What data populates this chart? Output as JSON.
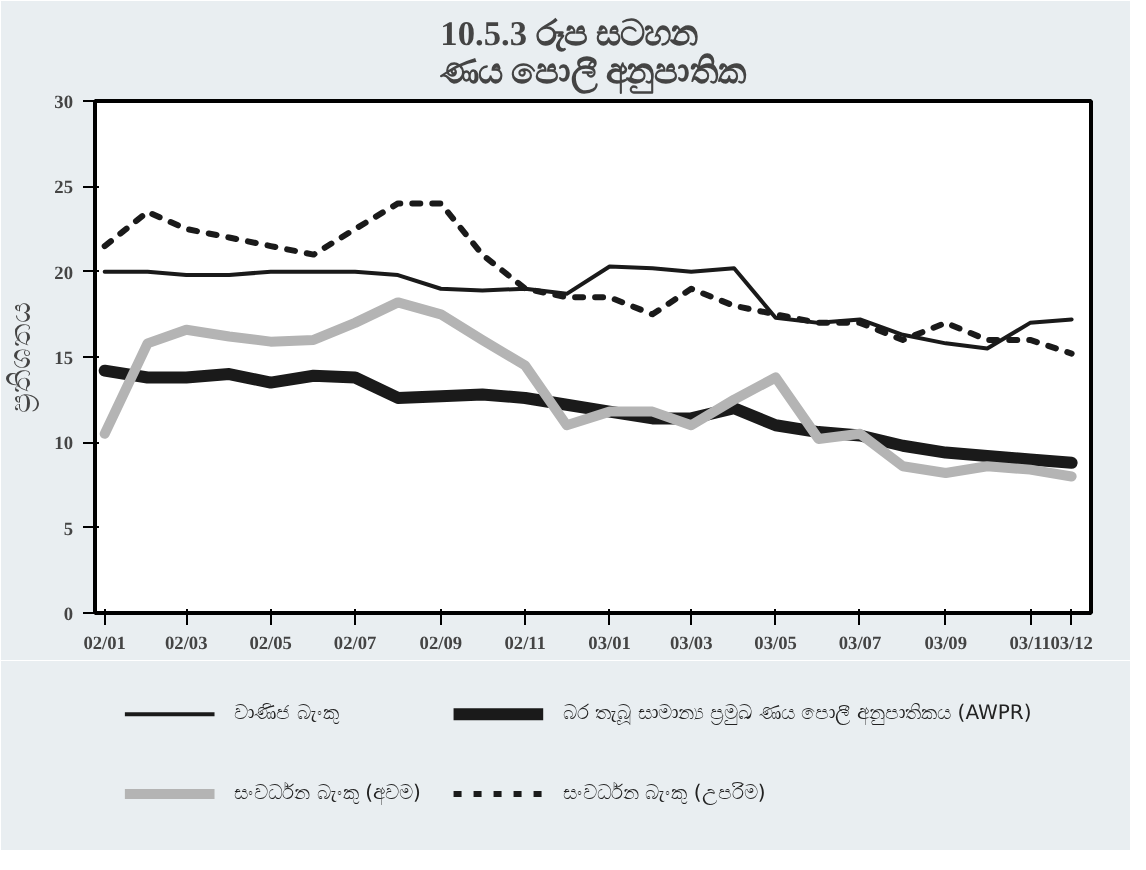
{
  "chart_data": {
    "type": "line",
    "title": "10.5.3 රූප සටහන\nණය පොලී අනුපාතික",
    "ylabel": "ප්‍රතිශතය",
    "x": [
      "2002-01",
      "2002-02",
      "2002-03",
      "2002-04",
      "2002-05",
      "2002-06",
      "2002-07",
      "2002-08",
      "2002-09",
      "2002-10",
      "2002-11",
      "2002-12",
      "2003-01",
      "2003-02",
      "2003-03",
      "2003-04",
      "2003-05",
      "2003-06",
      "2003-07",
      "2003-08",
      "2003-09",
      "2003-10",
      "2003-11",
      "2003-12"
    ],
    "xlim": [
      "2001-12-25",
      "2003-12-15"
    ],
    "xticks": [
      {
        "value": "2002-01",
        "label": "02/01"
      },
      {
        "value": "2002-03",
        "label": "02/03"
      },
      {
        "value": "2002-05",
        "label": "02/05"
      },
      {
        "value": "2002-07",
        "label": "02/07"
      },
      {
        "value": "2002-09",
        "label": "02/09"
      },
      {
        "value": "2002-11",
        "label": "02/11"
      },
      {
        "value": "2003-01",
        "label": "03/01"
      },
      {
        "value": "2003-03",
        "label": "03/03"
      },
      {
        "value": "2003-05",
        "label": "03/05"
      },
      {
        "value": "2003-07",
        "label": "03/07"
      },
      {
        "value": "2003-09",
        "label": "03/09"
      },
      {
        "value": "2003-11",
        "label": "03/11"
      },
      {
        "value": "2003-12",
        "label": "03/12"
      }
    ],
    "ylim": [
      0,
      30
    ],
    "yticks": [
      0,
      5,
      10,
      15,
      20,
      25,
      30
    ],
    "legend": "bottom",
    "series": [
      {
        "name": "වාණිජ බැංකු",
        "color": "#1a1a1a",
        "values": [
          20,
          20,
          19.8,
          19.8,
          20,
          20,
          20,
          19.8,
          19,
          18.9,
          19,
          18.7,
          20.3,
          20.2,
          20,
          20.2,
          17.3,
          17,
          17.2,
          16.3,
          15.8,
          15.5,
          17,
          17.2
        ]
      },
      {
        "name": "බර තැබූ සාමාන්‍ය ප්‍රමුඛ ණය පොලී අනුපාතිකය (AWPR)",
        "color": "#1a1a1a",
        "values": [
          14.2,
          13.8,
          13.8,
          14,
          13.5,
          13.9,
          13.8,
          12.6,
          12.7,
          12.8,
          12.6,
          12.2,
          11.8,
          11.4,
          11.4,
          12,
          11,
          10.6,
          10.4,
          9.8,
          9.4,
          9.2,
          9,
          8.8
        ]
      },
      {
        "name": "සංවර්ධන බැංකු (අවම)",
        "color": "#b4b4b4",
        "values": [
          10.5,
          15.8,
          16.6,
          16.2,
          15.9,
          16,
          17,
          18.2,
          17.5,
          16,
          14.5,
          11,
          11.8,
          11.8,
          11,
          12.5,
          13.8,
          10.2,
          10.5,
          8.6,
          8.2,
          8.6,
          8.4,
          8
        ]
      },
      {
        "name": "සංවර්ධන බැංකු (උපරිම)",
        "color": "#1a1a1a",
        "line_style": "dotted",
        "values": [
          21.5,
          23.5,
          22.5,
          22,
          21.5,
          21,
          22.5,
          24,
          24,
          21,
          19,
          18.5,
          18.5,
          17.5,
          19,
          18,
          17.5,
          17,
          17,
          16,
          17,
          16,
          16,
          15.2
        ]
      }
    ]
  }
}
